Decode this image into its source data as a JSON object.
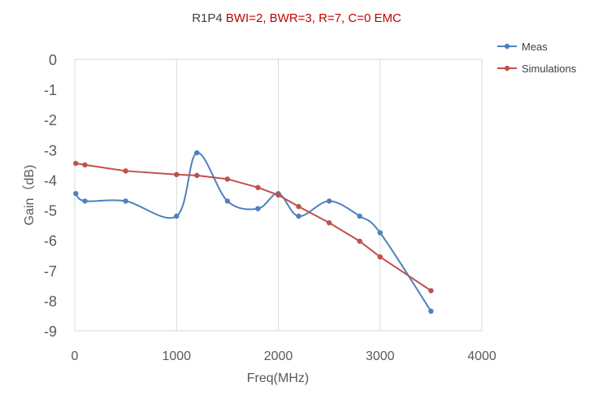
{
  "chart_data": {
    "type": "line",
    "title": {
      "prefix": "R1P4 ",
      "suffix": "BWI=2, BWR=3, R=7, C=0 EMC",
      "prefix_color": "#404040",
      "suffix_color": "#c00000"
    },
    "xlabel": "Freq(MHz)",
    "ylabel": "Gain（dB)",
    "xlim": [
      0,
      4000
    ],
    "ylim": [
      -9,
      0
    ],
    "xticks": [
      0,
      1000,
      2000,
      3000,
      4000
    ],
    "yticks": [
      0,
      -1,
      -2,
      -3,
      -4,
      -5,
      -6,
      -7,
      -8,
      -9
    ],
    "grid": "vertical",
    "legend_position": "top-right",
    "series": [
      {
        "name": "Meas",
        "color": "#4f81bd",
        "smooth": true,
        "points": [
          [
            10,
            -4.45
          ],
          [
            100,
            -4.7
          ],
          [
            500,
            -4.7
          ],
          [
            1000,
            -5.2
          ],
          [
            1200,
            -3.1
          ],
          [
            1500,
            -4.7
          ],
          [
            1800,
            -4.95
          ],
          [
            2000,
            -4.45
          ],
          [
            2200,
            -5.2
          ],
          [
            2500,
            -4.7
          ],
          [
            2800,
            -5.2
          ],
          [
            3000,
            -5.75
          ],
          [
            3500,
            -8.35
          ]
        ]
      },
      {
        "name": "Simulations",
        "color": "#c0504d",
        "smooth": false,
        "points": [
          [
            10,
            -3.45
          ],
          [
            100,
            -3.5
          ],
          [
            500,
            -3.7
          ],
          [
            1000,
            -3.82
          ],
          [
            1200,
            -3.85
          ],
          [
            1500,
            -3.97
          ],
          [
            1800,
            -4.25
          ],
          [
            2000,
            -4.5
          ],
          [
            2200,
            -4.88
          ],
          [
            2500,
            -5.42
          ],
          [
            2800,
            -6.03
          ],
          [
            3000,
            -6.55
          ],
          [
            3500,
            -7.67
          ]
        ]
      }
    ]
  }
}
